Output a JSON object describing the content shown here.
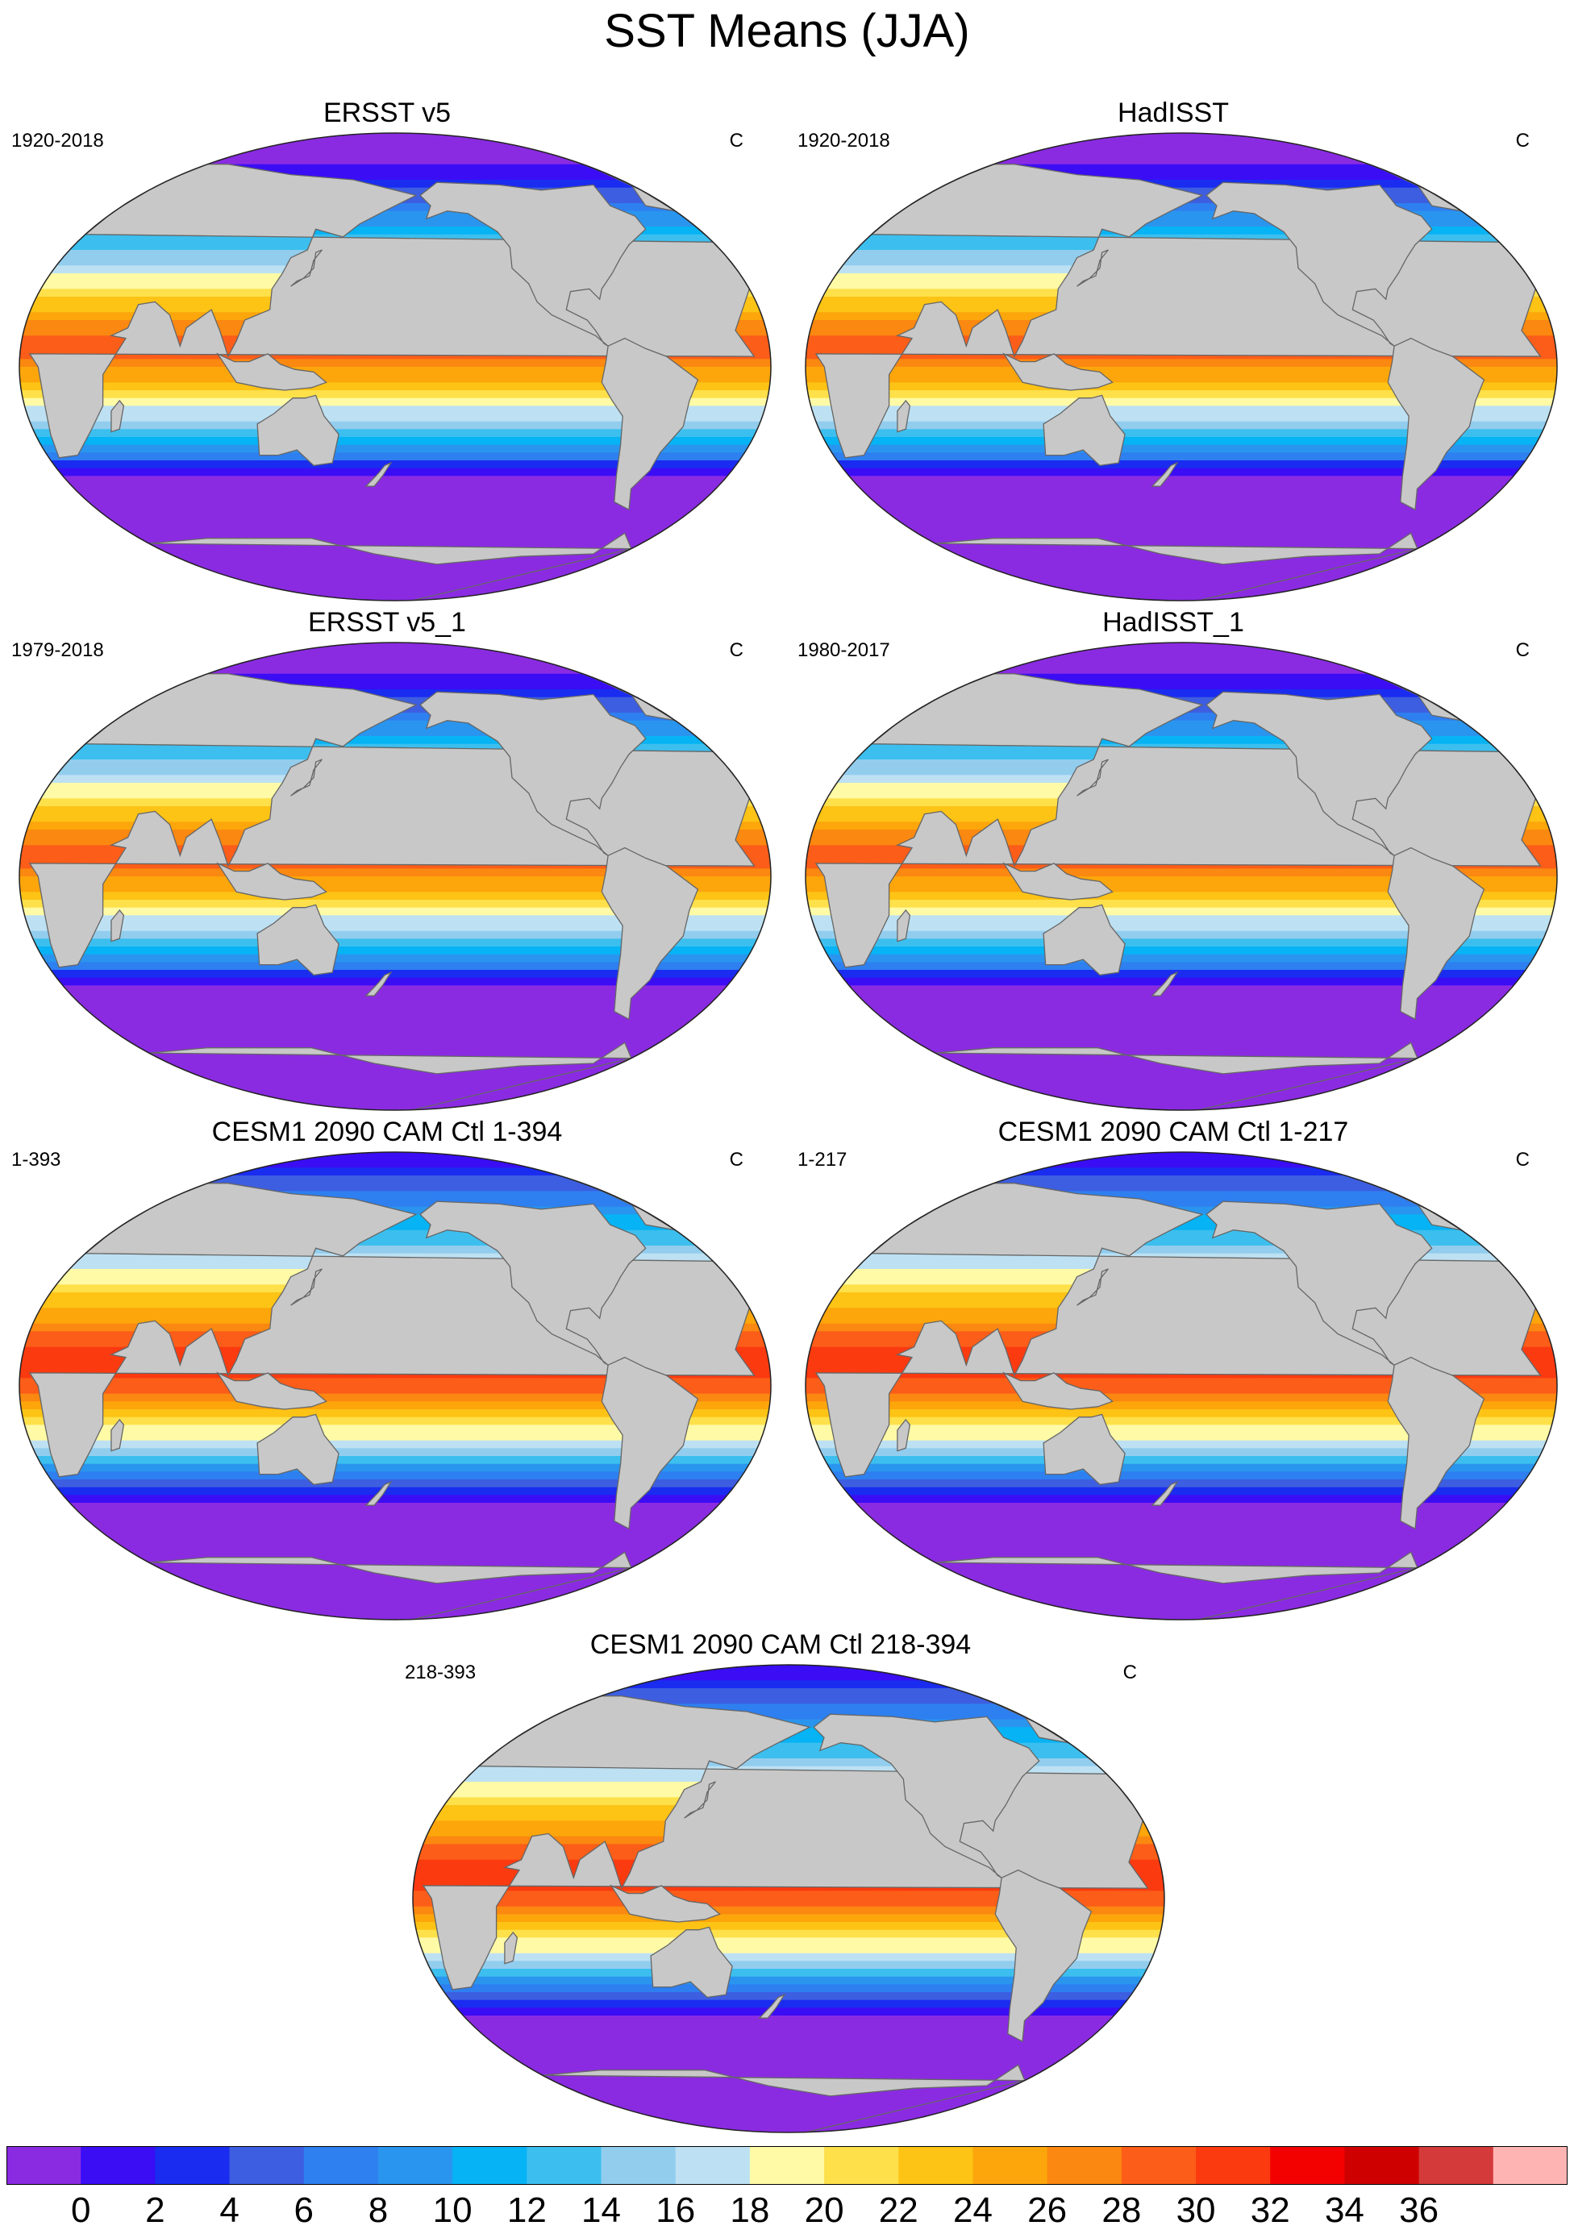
{
  "page": {
    "title": "SST Means (JJA)"
  },
  "colors": {
    "land": "#c8c8c8",
    "palette": [
      "#8a2be2",
      "#3a0df5",
      "#1a2cf0",
      "#3d5ee0",
      "#2e7ff0",
      "#2a95ee",
      "#06b3f5",
      "#3cbfee",
      "#92cdee",
      "#bde1f3",
      "#fffaa6",
      "#fde04a",
      "#fdc315",
      "#fca60b",
      "#fb8810",
      "#fc5d19",
      "#fb3a10",
      "#f30000",
      "#ce0000",
      "#d43a3a",
      "#ffb4b4"
    ]
  },
  "panels": [
    {
      "title": "ERSST v5",
      "years": "1920-2018",
      "units": "C",
      "variant": "obs"
    },
    {
      "title": "HadISST",
      "years": "1920-2018",
      "units": "C",
      "variant": "obs"
    },
    {
      "title": "ERSST v5_1",
      "years": "1979-2018",
      "units": "C",
      "variant": "obs"
    },
    {
      "title": "HadISST_1",
      "years": "1980-2017",
      "units": "C",
      "variant": "obs"
    },
    {
      "title": "CESM1 2090 CAM Ctl 1-394",
      "years": "1-393",
      "units": "C",
      "variant": "model"
    },
    {
      "title": "CESM1 2090 CAM Ctl 1-217",
      "years": "1-217",
      "units": "C",
      "variant": "model"
    },
    {
      "title": "CESM1 2090 CAM Ctl 218-394",
      "years": "218-393",
      "units": "C",
      "variant": "model"
    }
  ],
  "chart_data": {
    "type": "heatmap",
    "title": "SST Means (JJA)",
    "units": "C",
    "colorbar": {
      "levels": [
        "0",
        "2",
        "4",
        "6",
        "8",
        "10",
        "12",
        "14",
        "16",
        "18",
        "20",
        "22",
        "24",
        "26",
        "28",
        "30",
        "32",
        "34",
        "36"
      ],
      "n_bins": 21,
      "colors": [
        "#8a2be2",
        "#3a0df5",
        "#1a2cf0",
        "#3d5ee0",
        "#2e7ff0",
        "#2a95ee",
        "#06b3f5",
        "#3cbfee",
        "#92cdee",
        "#bde1f3",
        "#fffaa6",
        "#fde04a",
        "#fdc315",
        "#fca60b",
        "#fb8810",
        "#fc5d19",
        "#fb3a10",
        "#f30000",
        "#ce0000",
        "#d43a3a",
        "#ffb4b4"
      ]
    },
    "maps": [
      {
        "title": "ERSST v5",
        "period": "1920-2018",
        "max_sst": 30
      },
      {
        "title": "HadISST",
        "period": "1920-2018",
        "max_sst": 30
      },
      {
        "title": "ERSST v5_1",
        "period": "1979-2018",
        "max_sst": 30
      },
      {
        "title": "HadISST_1",
        "period": "1980-2017",
        "max_sst": 30
      },
      {
        "title": "CESM1 2090 CAM Ctl 1-394",
        "period": "1-393",
        "max_sst": 32
      },
      {
        "title": "CESM1 2090 CAM Ctl 1-217",
        "period": "1-217",
        "max_sst": 32
      },
      {
        "title": "CESM1 2090 CAM Ctl 218-394",
        "period": "218-393",
        "max_sst": 32
      }
    ]
  }
}
